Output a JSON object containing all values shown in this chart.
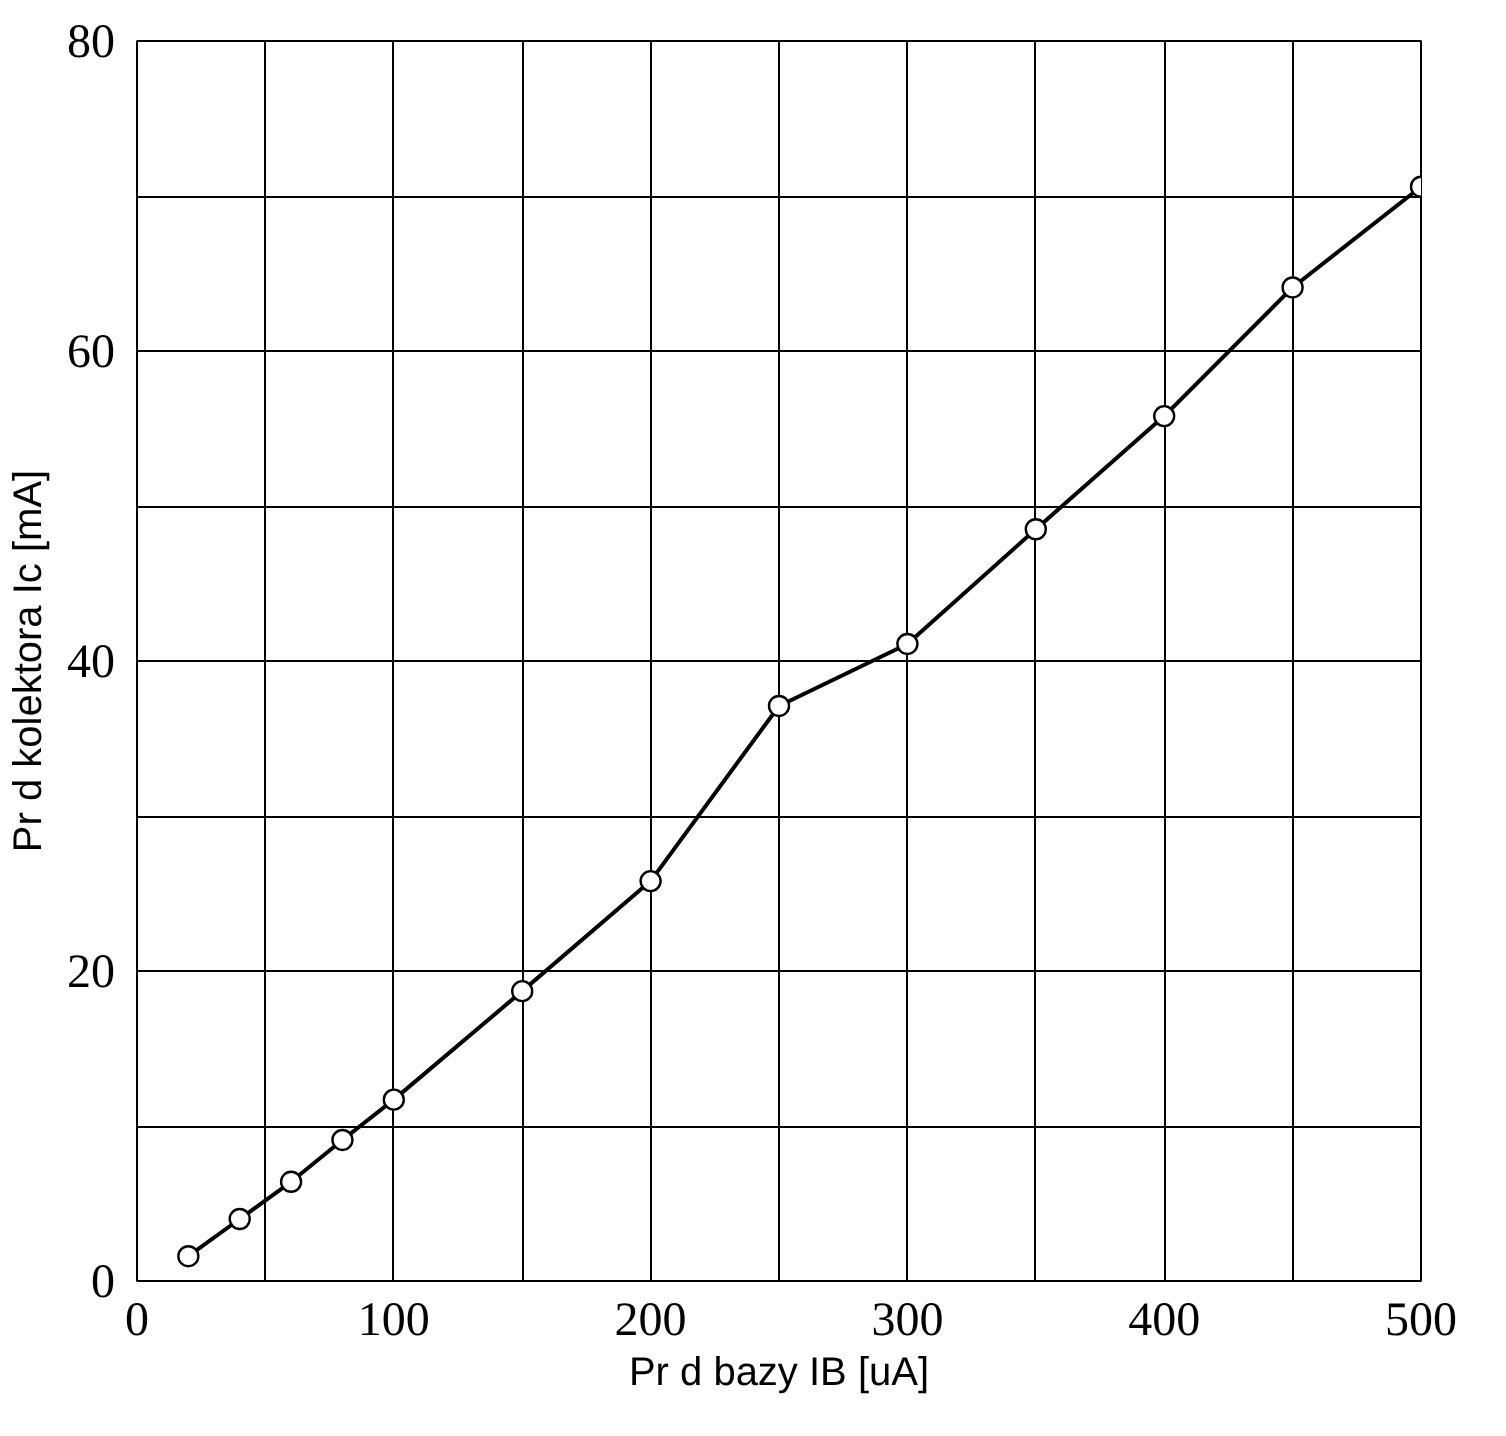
{
  "chart_data": {
    "type": "line",
    "xlabel": "Pr d bazy IB [uA]",
    "ylabel": "Pr d kolektora Ic [mA]",
    "x": [
      20,
      40,
      60,
      80,
      100,
      150,
      200,
      250,
      300,
      350,
      400,
      450,
      500
    ],
    "series": [
      {
        "color": "#000000",
        "values": [
          1.6,
          4.0,
          6.4,
          9.1,
          11.7,
          18.7,
          25.8,
          37.1,
          41.1,
          48.5,
          55.8,
          64.1,
          70.6
        ]
      }
    ],
    "xlim": [
      0,
      500
    ],
    "ylim": [
      0,
      80
    ],
    "xticks": [
      0,
      {
        "value": 50,
        "label": null
      },
      100,
      {
        "value": 150,
        "label": null
      },
      200,
      {
        "value": 250,
        "label": null
      },
      300,
      {
        "value": 350,
        "label": null
      },
      400,
      {
        "value": 450,
        "label": null
      },
      500
    ],
    "yticks": [
      0,
      {
        "value": 10,
        "label": null
      },
      20,
      {
        "value": 30,
        "label": null
      },
      40,
      {
        "value": 50,
        "label": null
      },
      60,
      {
        "value": 70,
        "label": null
      },
      80
    ],
    "grid": true,
    "marker": "circle",
    "line_style": "solid"
  }
}
